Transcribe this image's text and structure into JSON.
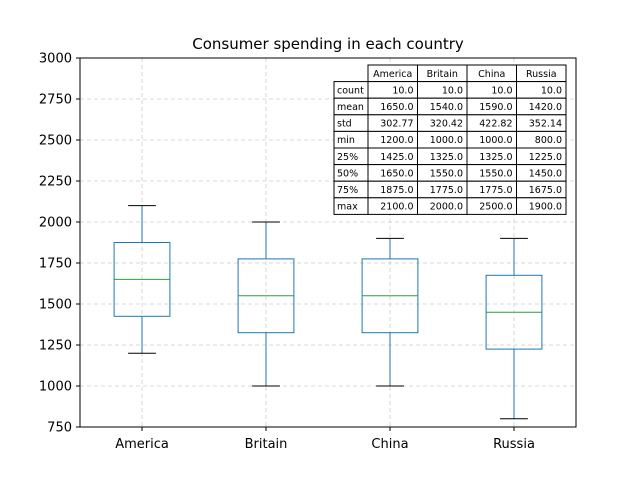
{
  "chart_data": {
    "type": "box",
    "title": "Consumer spending in each country",
    "xlabel": "",
    "ylabel": "",
    "ylim": [
      750,
      3000
    ],
    "yticks": [
      750,
      1000,
      1250,
      1500,
      1750,
      2000,
      2250,
      2500,
      2750,
      3000
    ],
    "grid": true,
    "categories": [
      "America",
      "Britain",
      "China",
      "Russia"
    ],
    "boxes": [
      {
        "category": "America",
        "min": 1200,
        "q1": 1425,
        "median": 1650,
        "q3": 1875,
        "max": 2100
      },
      {
        "category": "Britain",
        "min": 1000,
        "q1": 1325,
        "median": 1550,
        "q3": 1775,
        "max": 2000
      },
      {
        "category": "China",
        "min": 1000,
        "q1": 1325,
        "median": 1550,
        "q3": 1775,
        "max": 1900
      },
      {
        "category": "Russia",
        "min": 800,
        "q1": 1225,
        "median": 1450,
        "q3": 1675,
        "max": 1900
      }
    ],
    "outliers": [
      {
        "category": "China",
        "value": 2500
      }
    ],
    "colors": {
      "box": "#1f77b4",
      "median": "#2ca02c",
      "whisker": "#000000",
      "grid": "#cccccc"
    },
    "table": {
      "columns": [
        "America",
        "Britain",
        "China",
        "Russia"
      ],
      "rows": [
        {
          "label": "count",
          "values": [
            "10.0",
            "10.0",
            "10.0",
            "10.0"
          ]
        },
        {
          "label": "mean",
          "values": [
            "1650.0",
            "1540.0",
            "1590.0",
            "1420.0"
          ]
        },
        {
          "label": "std",
          "values": [
            "302.77",
            "320.42",
            "422.82",
            "352.14"
          ]
        },
        {
          "label": "min",
          "values": [
            "1200.0",
            "1000.0",
            "1000.0",
            "800.0"
          ]
        },
        {
          "label": "25%",
          "values": [
            "1425.0",
            "1325.0",
            "1325.0",
            "1225.0"
          ]
        },
        {
          "label": "50%",
          "values": [
            "1650.0",
            "1550.0",
            "1550.0",
            "1450.0"
          ]
        },
        {
          "label": "75%",
          "values": [
            "1875.0",
            "1775.0",
            "1775.0",
            "1675.0"
          ]
        },
        {
          "label": "max",
          "values": [
            "2100.0",
            "2000.0",
            "2500.0",
            "1900.0"
          ]
        }
      ]
    }
  }
}
